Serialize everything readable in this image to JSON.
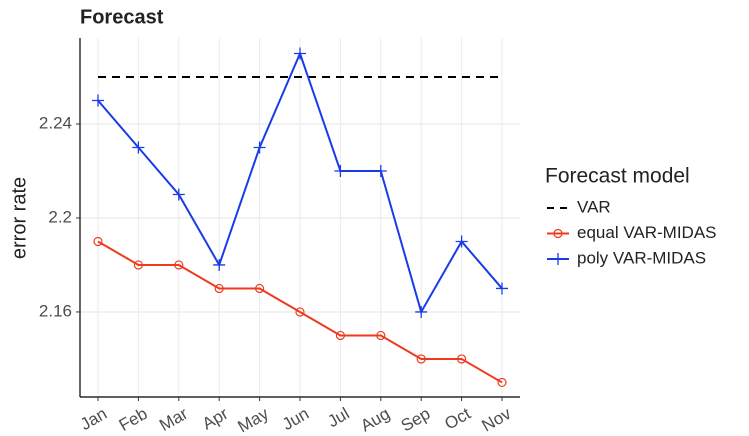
{
  "chart_data": {
    "type": "line",
    "title": "Forecast",
    "y_label": "error rate",
    "categories": [
      "Jan",
      "Feb",
      "Mar",
      "Apr",
      "May",
      "Jun",
      "Jul",
      "Aug",
      "Sep",
      "Oct",
      "Nov"
    ],
    "series": [
      {
        "name": "VAR",
        "color": "#000000",
        "dash": true,
        "marker": "none",
        "values": [
          2.26,
          2.26,
          2.26,
          2.26,
          2.26,
          2.26,
          2.26,
          2.26,
          2.26,
          2.26,
          2.26
        ]
      },
      {
        "name": "equal VAR-MIDAS",
        "color": "#ee3a1f",
        "marker": "circle",
        "values": [
          2.19,
          2.18,
          2.18,
          2.17,
          2.17,
          2.16,
          2.15,
          2.15,
          2.14,
          2.14,
          2.13
        ]
      },
      {
        "name": "poly VAR-MIDAS",
        "color": "#1a3be8",
        "marker": "plus",
        "values": [
          2.25,
          2.23,
          2.21,
          2.18,
          2.23,
          2.27,
          2.22,
          2.22,
          2.16,
          2.19,
          2.17
        ]
      }
    ],
    "ylim": [
      2.1238,
      2.2766
    ],
    "yticks": [
      2.16,
      2.2,
      2.24
    ],
    "grid": true,
    "legend_title": "Forecast model",
    "legend": "right"
  }
}
